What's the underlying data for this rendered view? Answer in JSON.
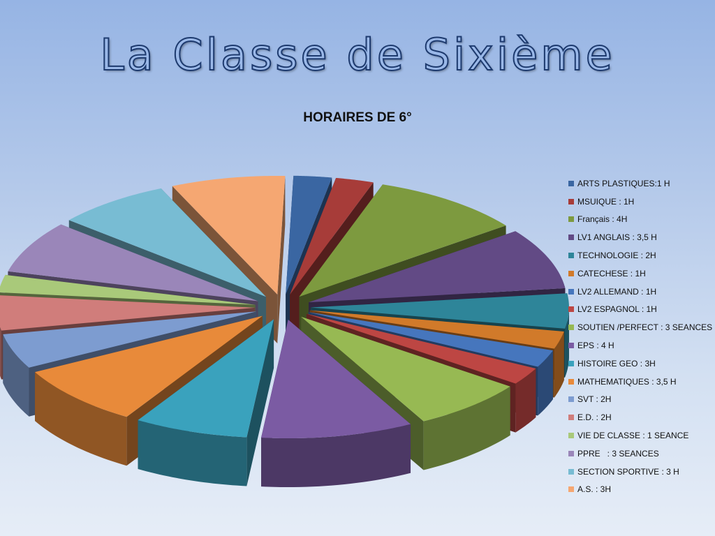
{
  "slide": {
    "title": "La Classe de Sixième"
  },
  "chart_data": {
    "type": "pie",
    "variant": "3d-exploded",
    "title": "HORAIRES DE 6°",
    "legend_position": "right",
    "series": [
      {
        "label": "ARTS PLASTIQUES:1 H",
        "value": 1,
        "color": "#3a66a2"
      },
      {
        "label": "MSUIQUE : 1H",
        "value": 1,
        "color": "#a73c39"
      },
      {
        "label": "Français : 4H",
        "value": 4,
        "color": "#7d9a3f"
      },
      {
        "label": "LV1 ANGLAIS : 3,5 H",
        "value": 3.5,
        "color": "#624a85"
      },
      {
        "label": "TECHNOLOGIE : 2H",
        "value": 2,
        "color": "#2e8599"
      },
      {
        "label": "CATECHESE : 1H",
        "value": 1,
        "color": "#d17a2a"
      },
      {
        "label": "LV2 ALLEMAND : 1H",
        "value": 1,
        "color": "#4676bd"
      },
      {
        "label": "LV2 ESPAGNOL : 1H",
        "value": 1,
        "color": "#bd4643"
      },
      {
        "label": "SOUTIEN /PERFECT : 3 SEANCES",
        "value": 3,
        "color": "#97b953"
      },
      {
        "label": "EPS : 4 H",
        "value": 4,
        "color": "#7b5ba3"
      },
      {
        "label": "HISTOIRE GEO : 3H",
        "value": 3,
        "color": "#3aa2bd"
      },
      {
        "label": "MATHEMATIQUES : 3,5 H",
        "value": 3.5,
        "color": "#e88a3a"
      },
      {
        "label": "SVT : 2H",
        "value": 2,
        "color": "#7d9cd0"
      },
      {
        "label": "E.D. : 2H",
        "value": 2,
        "color": "#d07d7b"
      },
      {
        "label": "VIE DE CLASSE : 1 SEANCE",
        "value": 1,
        "color": "#a9c97a"
      },
      {
        "label": "PPRE   : 3 SEANCES",
        "value": 3,
        "color": "#9a86b9"
      },
      {
        "label": "SECTION SPORTIVE : 3 H",
        "value": 3,
        "color": "#78bcd3"
      },
      {
        "label": "A.S. : 3H",
        "value": 3,
        "color": "#f5a772"
      }
    ]
  }
}
